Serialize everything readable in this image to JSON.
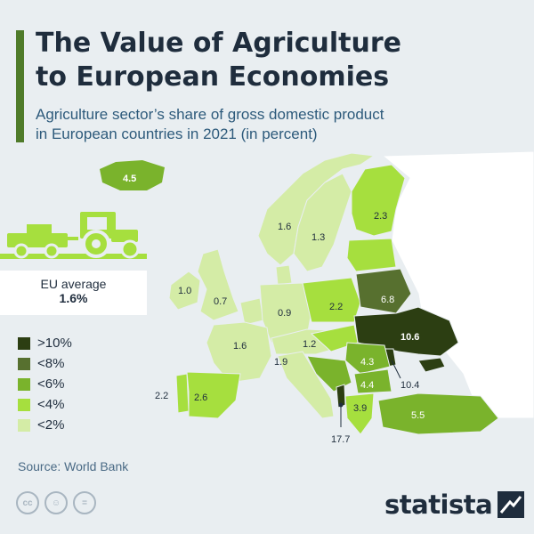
{
  "header": {
    "title": "The Value of Agriculture\nto European Economies",
    "subtitle": "Agriculture sector’s share of gross domestic product\nin European countries in 2021 (in percent)"
  },
  "eu_average": {
    "label": "EU average",
    "value": "1.6%"
  },
  "legend": [
    {
      "label": ">10%",
      "color": "#2c3e12"
    },
    {
      "label": "<8%",
      "color": "#57702f"
    },
    {
      "label": "<6%",
      "color": "#7ab32c"
    },
    {
      "label": "<4%",
      "color": "#a6df3e"
    },
    {
      "label": "<2%",
      "color": "#d4eca6"
    }
  ],
  "map_values": [
    {
      "country": "Iceland",
      "value": "4.5"
    },
    {
      "country": "Finland",
      "value": "2.3"
    },
    {
      "country": "Norway",
      "value": "1.6"
    },
    {
      "country": "Sweden",
      "value": "1.3"
    },
    {
      "country": "Ireland",
      "value": "1.0"
    },
    {
      "country": "United Kingdom",
      "value": "0.7"
    },
    {
      "country": "Germany",
      "value": "0.9"
    },
    {
      "country": "Poland",
      "value": "2.2"
    },
    {
      "country": "Belarus",
      "value": "6.8"
    },
    {
      "country": "Ukraine",
      "value": "10.6"
    },
    {
      "country": "France",
      "value": "1.6"
    },
    {
      "country": "Austria",
      "value": "1.2"
    },
    {
      "country": "Italy",
      "value": "1.9"
    },
    {
      "country": "Romania",
      "value": "4.3"
    },
    {
      "country": "Moldova",
      "value": "10.4"
    },
    {
      "country": "Bulgaria",
      "value": "4.4"
    },
    {
      "country": "Greece",
      "value": "3.9"
    },
    {
      "country": "Albania",
      "value": "17.7"
    },
    {
      "country": "Turkey",
      "value": "5.5"
    },
    {
      "country": "Portugal",
      "value": "2.2"
    },
    {
      "country": "Spain",
      "value": "2.6"
    }
  ],
  "source": "Source: World Bank",
  "brand": "statista",
  "license_icons": [
    "cc-icon",
    "by-icon",
    "nd-icon"
  ]
}
